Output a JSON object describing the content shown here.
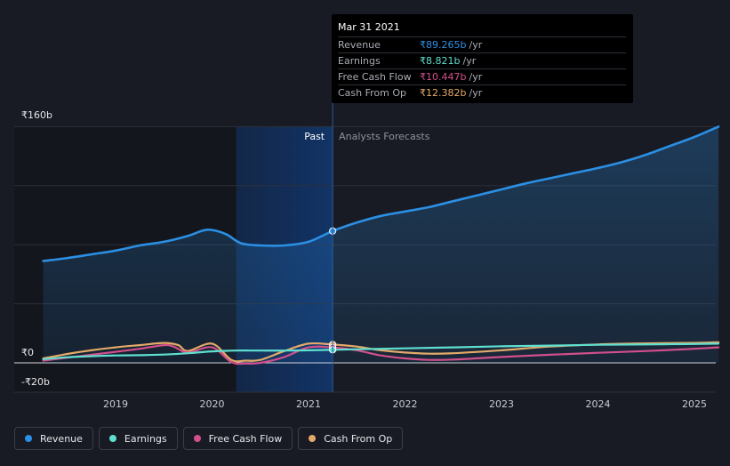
{
  "chart_data": {
    "type": "area",
    "y_axis": {
      "ticks": [
        "₹160b",
        "₹0",
        "-₹20b"
      ],
      "ylim": [
        -20,
        160
      ]
    },
    "x_axis": {
      "ticks": [
        "2019",
        "2020",
        "2021",
        "2022",
        "2023",
        "2024",
        "2025"
      ]
    },
    "regions": {
      "past_label": "Past",
      "forecast_label": "Analysts Forecasts",
      "divider_x": 2021.25
    },
    "grid": true,
    "series": [
      {
        "name": "Revenue",
        "color": "#2b8fe4",
        "x": [
          2018.25,
          2018.5,
          2018.75,
          2019.0,
          2019.25,
          2019.5,
          2019.75,
          2019.9,
          2020.0,
          2020.15,
          2020.3,
          2020.5,
          2020.75,
          2021.0,
          2021.25,
          2021.5,
          2021.75,
          2022.0,
          2022.25,
          2022.5,
          2022.75,
          2023.0,
          2023.25,
          2023.5,
          2023.75,
          2024.0,
          2024.25,
          2024.5,
          2024.75,
          2025.0,
          2025.25
        ],
        "y": [
          69,
          71,
          73.5,
          76,
          79.5,
          82,
          86,
          89.5,
          90,
          87,
          81,
          79.5,
          79.5,
          82,
          89.3,
          95,
          99.5,
          102.5,
          105.5,
          109.5,
          113.5,
          117.5,
          121.5,
          125,
          128.5,
          132,
          136,
          141,
          147,
          153,
          160
        ]
      },
      {
        "name": "Earnings",
        "color": "#5fdfcf",
        "x": [
          2018.25,
          2018.5,
          2018.75,
          2019.0,
          2019.25,
          2019.5,
          2019.75,
          2020.0,
          2020.25,
          2020.5,
          2020.75,
          2021.0,
          2021.25,
          2021.5,
          2022.0,
          2022.5,
          2023.0,
          2023.5,
          2024.0,
          2024.5,
          2025.0,
          2025.25
        ],
        "y": [
          2.5,
          3.8,
          4.5,
          5,
          5.2,
          5.6,
          6.5,
          7.8,
          8.3,
          8.3,
          8.3,
          8.5,
          8.821,
          9.2,
          9.8,
          10.5,
          11.2,
          11.7,
          12.2,
          12.5,
          12.8,
          13
        ]
      },
      {
        "name": "Free Cash Flow",
        "color": "#d14f8c",
        "x": [
          2018.25,
          2018.5,
          2018.75,
          2019.0,
          2019.25,
          2019.5,
          2019.6,
          2019.75,
          2020.0,
          2020.2,
          2020.35,
          2020.5,
          2020.75,
          2021.0,
          2021.25,
          2021.5,
          2021.75,
          2022.0,
          2022.25,
          2022.5,
          2023.0,
          2023.5,
          2024.0,
          2024.5,
          2025.0,
          2025.25
        ],
        "y": [
          1.5,
          3.5,
          5.5,
          7.5,
          9.5,
          12,
          11,
          7,
          10.5,
          0.5,
          -0.5,
          0,
          4,
          10.5,
          10.447,
          8.5,
          5,
          3,
          2,
          2.2,
          4,
          5.5,
          6.8,
          8,
          9.5,
          10.5
        ]
      },
      {
        "name": "Cash From Op",
        "color": "#e3a968",
        "x": [
          2018.25,
          2018.5,
          2018.75,
          2019.0,
          2019.25,
          2019.5,
          2019.65,
          2019.75,
          2020.0,
          2020.2,
          2020.35,
          2020.5,
          2020.75,
          2021.0,
          2021.25,
          2021.5,
          2021.75,
          2022.0,
          2022.25,
          2022.5,
          2023.0,
          2023.5,
          2024.0,
          2024.5,
          2025.0,
          2025.25
        ],
        "y": [
          3,
          6,
          8.5,
          10.5,
          12,
          13.5,
          12,
          8,
          13,
          2,
          1.5,
          2,
          8,
          13,
          12.382,
          11,
          8.5,
          7,
          6.2,
          6.5,
          8.5,
          11,
          12.5,
          13.2,
          13.5,
          14
        ]
      }
    ],
    "tooltip": {
      "date": "Mar 31 2021",
      "rows": [
        {
          "name": "Revenue",
          "value": "₹89.265b",
          "unit": "/yr",
          "color": "#2b8fe4"
        },
        {
          "name": "Earnings",
          "value": "₹8.821b",
          "unit": "/yr",
          "color": "#5fdfcf"
        },
        {
          "name": "Free Cash Flow",
          "value": "₹10.447b",
          "unit": "/yr",
          "color": "#d14f8c"
        },
        {
          "name": "Cash From Op",
          "value": "₹12.382b",
          "unit": "/yr",
          "color": "#e3a968"
        }
      ]
    },
    "legend": [
      {
        "name": "Revenue",
        "color": "#2b8fe4"
      },
      {
        "name": "Earnings",
        "color": "#5fdfcf"
      },
      {
        "name": "Free Cash Flow",
        "color": "#d14f8c"
      },
      {
        "name": "Cash From Op",
        "color": "#e3a968"
      }
    ]
  }
}
